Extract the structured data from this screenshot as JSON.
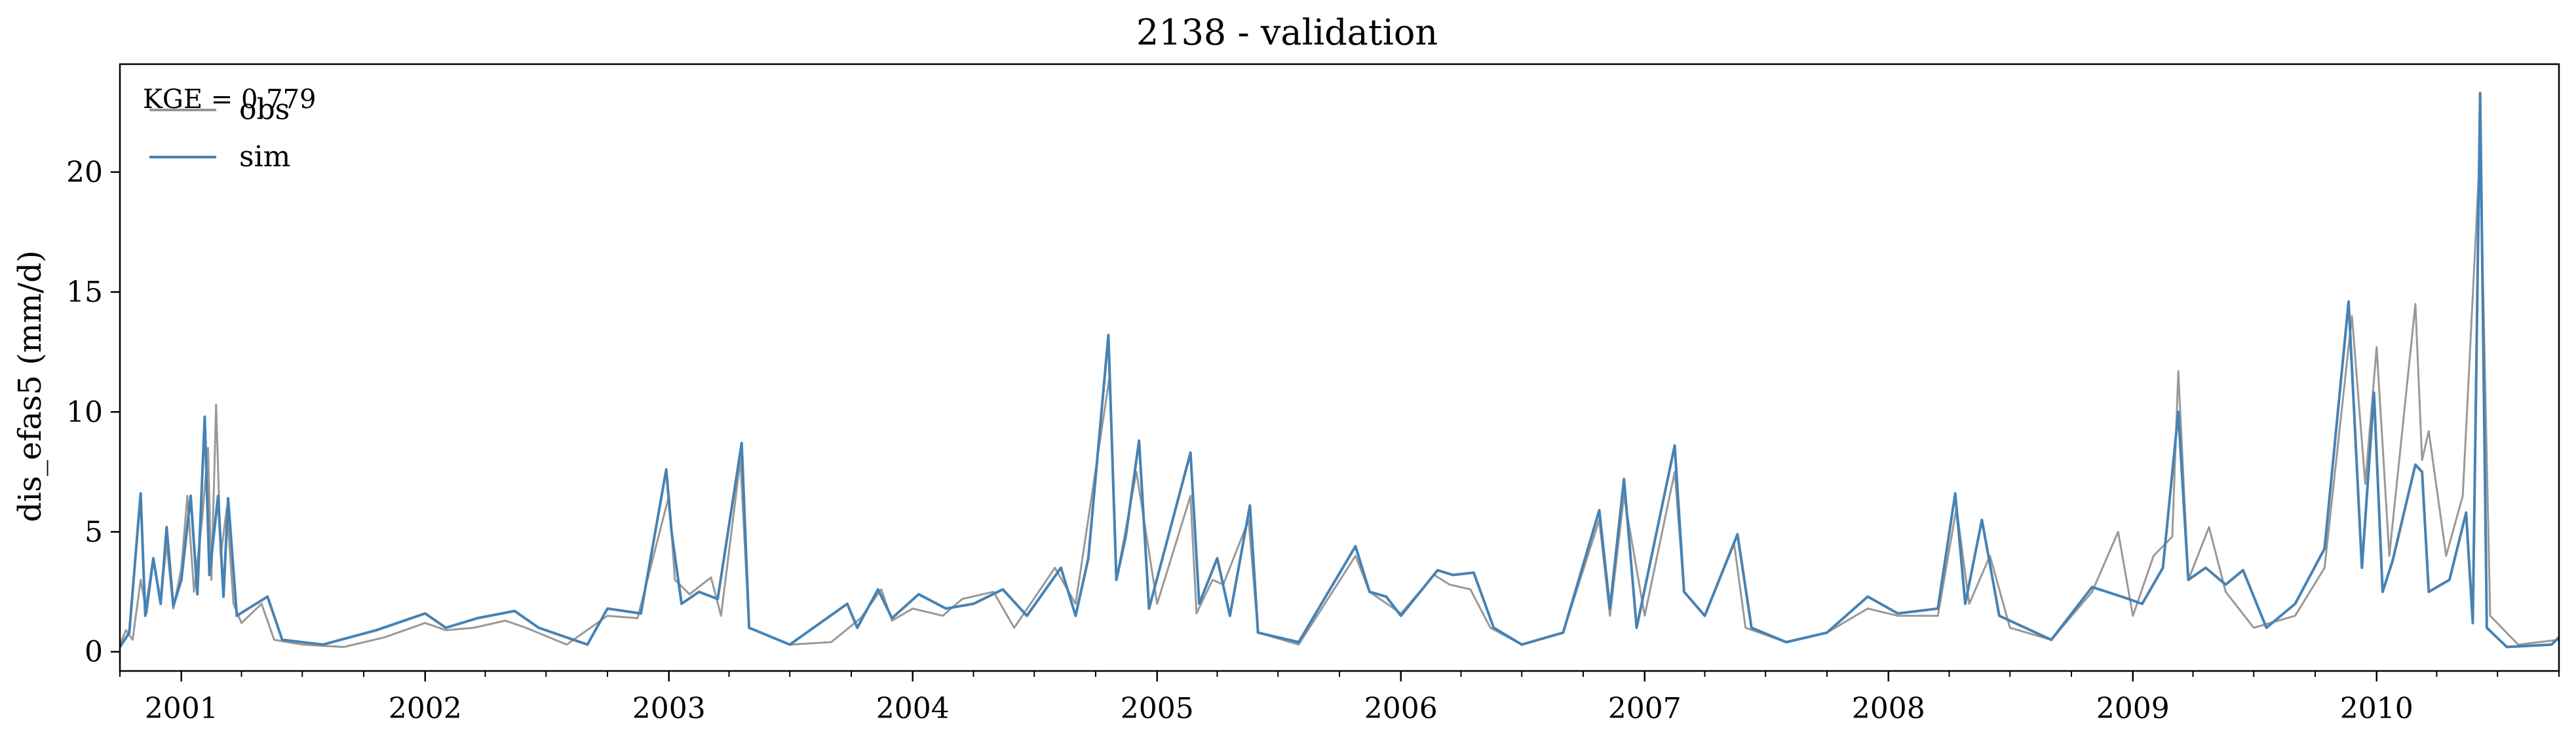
{
  "chart_data": {
    "type": "line",
    "title": "2138 - validation",
    "xlabel": "",
    "ylabel": "dis_efas5 (mm/d)",
    "xlim": [
      "2000-10-01",
      "2010-10-01"
    ],
    "ylim": [
      -0.8,
      24.5
    ],
    "y_ticks": [
      0,
      5,
      10,
      15,
      20
    ],
    "x_ticks": [
      "2001",
      "2002",
      "2003",
      "2004",
      "2005",
      "2006",
      "2007",
      "2008",
      "2009",
      "2010"
    ],
    "annotation": "KGE = 0.779",
    "legend": {
      "placement": "top-left"
    },
    "grid": false,
    "series": [
      {
        "name": "obs",
        "color": "#999999",
        "points": [
          [
            "2000-10-01",
            0.3
          ],
          [
            "2000-10-10",
            0.9
          ],
          [
            "2000-10-20",
            0.5
          ],
          [
            "2000-11-01",
            3.0
          ],
          [
            "2000-11-10",
            1.6
          ],
          [
            "2000-11-20",
            3.8
          ],
          [
            "2000-12-01",
            2.2
          ],
          [
            "2000-12-10",
            4.5
          ],
          [
            "2000-12-20",
            1.8
          ],
          [
            "2001-01-01",
            3.5
          ],
          [
            "2001-01-10",
            6.5
          ],
          [
            "2001-01-20",
            2.5
          ],
          [
            "2001-02-01",
            5.5
          ],
          [
            "2001-02-10",
            8.5
          ],
          [
            "2001-02-15",
            3.0
          ],
          [
            "2001-02-22",
            10.3
          ],
          [
            "2001-03-01",
            4.0
          ],
          [
            "2001-03-10",
            6.0
          ],
          [
            "2001-03-20",
            2.0
          ],
          [
            "2001-04-01",
            1.2
          ],
          [
            "2001-05-01",
            2.0
          ],
          [
            "2001-05-20",
            0.5
          ],
          [
            "2001-07-01",
            0.3
          ],
          [
            "2001-09-01",
            0.2
          ],
          [
            "2001-11-01",
            0.6
          ],
          [
            "2002-01-01",
            1.2
          ],
          [
            "2002-02-01",
            0.9
          ],
          [
            "2002-03-15",
            1.0
          ],
          [
            "2002-05-01",
            1.3
          ],
          [
            "2002-06-01",
            1.0
          ],
          [
            "2002-08-01",
            0.3
          ],
          [
            "2002-10-01",
            1.5
          ],
          [
            "2002-11-15",
            1.4
          ],
          [
            "2003-01-01",
            6.5
          ],
          [
            "2003-01-10",
            3.0
          ],
          [
            "2003-02-01",
            2.4
          ],
          [
            "2003-03-05",
            3.1
          ],
          [
            "2003-03-20",
            1.5
          ],
          [
            "2003-04-18",
            8.0
          ],
          [
            "2003-05-01",
            1.0
          ],
          [
            "2003-07-01",
            0.3
          ],
          [
            "2003-09-01",
            0.4
          ],
          [
            "2003-10-15",
            1.4
          ],
          [
            "2003-11-15",
            2.6
          ],
          [
            "2003-12-01",
            1.3
          ],
          [
            "2004-01-01",
            1.8
          ],
          [
            "2004-02-15",
            1.5
          ],
          [
            "2004-03-15",
            2.2
          ],
          [
            "2004-05-01",
            2.5
          ],
          [
            "2004-06-01",
            1.0
          ],
          [
            "2004-08-01",
            3.5
          ],
          [
            "2004-09-01",
            2.0
          ],
          [
            "2004-10-22",
            11.5
          ],
          [
            "2004-11-01",
            3.0
          ],
          [
            "2004-12-01",
            7.5
          ],
          [
            "2005-01-01",
            2.0
          ],
          [
            "2005-02-20",
            6.5
          ],
          [
            "2005-03-01",
            1.6
          ],
          [
            "2005-03-25",
            3.0
          ],
          [
            "2005-04-10",
            2.8
          ],
          [
            "2005-05-18",
            5.5
          ],
          [
            "2005-06-01",
            0.8
          ],
          [
            "2005-08-01",
            0.3
          ],
          [
            "2005-10-25",
            4.0
          ],
          [
            "2005-11-15",
            2.5
          ],
          [
            "2006-01-01",
            1.6
          ],
          [
            "2006-02-20",
            3.2
          ],
          [
            "2006-03-15",
            2.8
          ],
          [
            "2006-04-15",
            2.6
          ],
          [
            "2006-05-15",
            1.0
          ],
          [
            "2006-07-01",
            0.3
          ],
          [
            "2006-09-01",
            0.8
          ],
          [
            "2006-10-25",
            5.5
          ],
          [
            "2006-11-10",
            1.5
          ],
          [
            "2006-12-01",
            6.5
          ],
          [
            "2007-01-01",
            1.5
          ],
          [
            "2007-02-15",
            7.5
          ],
          [
            "2007-03-01",
            2.5
          ],
          [
            "2007-04-01",
            1.5
          ],
          [
            "2007-05-15",
            4.5
          ],
          [
            "2007-06-01",
            1.0
          ],
          [
            "2007-08-01",
            0.4
          ],
          [
            "2007-10-01",
            0.8
          ],
          [
            "2007-12-01",
            1.8
          ],
          [
            "2008-01-15",
            1.5
          ],
          [
            "2008-03-15",
            1.5
          ],
          [
            "2008-04-12",
            6.0
          ],
          [
            "2008-05-01",
            2.0
          ],
          [
            "2008-06-01",
            4.0
          ],
          [
            "2008-07-01",
            1.0
          ],
          [
            "2008-09-01",
            0.5
          ],
          [
            "2008-11-01",
            2.5
          ],
          [
            "2008-12-10",
            5.0
          ],
          [
            "2009-01-01",
            1.5
          ],
          [
            "2009-02-01",
            4.0
          ],
          [
            "2009-03-01",
            4.8
          ],
          [
            "2009-03-10",
            11.7
          ],
          [
            "2009-03-25",
            3.0
          ],
          [
            "2009-04-25",
            5.2
          ],
          [
            "2009-05-20",
            2.5
          ],
          [
            "2009-07-01",
            1.0
          ],
          [
            "2009-09-01",
            1.5
          ],
          [
            "2009-10-15",
            3.5
          ],
          [
            "2009-11-25",
            14.0
          ],
          [
            "2009-12-15",
            7.0
          ],
          [
            "2010-01-01",
            12.7
          ],
          [
            "2010-01-20",
            4.0
          ],
          [
            "2010-02-28",
            14.5
          ],
          [
            "2010-03-10",
            8.0
          ],
          [
            "2010-03-20",
            9.2
          ],
          [
            "2010-04-15",
            4.0
          ],
          [
            "2010-05-10",
            6.5
          ],
          [
            "2010-06-05",
            21.0
          ],
          [
            "2010-06-20",
            1.5
          ],
          [
            "2010-08-01",
            0.3
          ],
          [
            "2010-10-01",
            0.5
          ]
        ]
      },
      {
        "name": "sim",
        "color": "#4682b4",
        "points": [
          [
            "2000-10-01",
            0.2
          ],
          [
            "2000-10-15",
            0.8
          ],
          [
            "2000-11-01",
            6.6
          ],
          [
            "2000-11-08",
            1.5
          ],
          [
            "2000-11-20",
            3.9
          ],
          [
            "2000-12-01",
            2.0
          ],
          [
            "2000-12-10",
            5.2
          ],
          [
            "2000-12-20",
            1.9
          ],
          [
            "2001-01-01",
            3.0
          ],
          [
            "2001-01-15",
            6.5
          ],
          [
            "2001-01-25",
            2.4
          ],
          [
            "2001-02-05",
            9.8
          ],
          [
            "2001-02-12",
            3.2
          ],
          [
            "2001-02-25",
            6.5
          ],
          [
            "2001-03-05",
            2.3
          ],
          [
            "2001-03-12",
            6.4
          ],
          [
            "2001-03-25",
            1.5
          ],
          [
            "2001-05-10",
            2.3
          ],
          [
            "2001-06-01",
            0.5
          ],
          [
            "2001-08-01",
            0.3
          ],
          [
            "2001-10-20",
            0.9
          ],
          [
            "2002-01-01",
            1.6
          ],
          [
            "2002-02-01",
            1.0
          ],
          [
            "2002-03-20",
            1.4
          ],
          [
            "2002-05-15",
            1.7
          ],
          [
            "2002-06-20",
            1.0
          ],
          [
            "2002-09-01",
            0.3
          ],
          [
            "2002-10-01",
            1.8
          ],
          [
            "2002-11-20",
            1.6
          ],
          [
            "2002-12-28",
            7.6
          ],
          [
            "2003-01-05",
            5.0
          ],
          [
            "2003-01-20",
            2.0
          ],
          [
            "2003-02-15",
            2.5
          ],
          [
            "2003-03-15",
            2.2
          ],
          [
            "2003-04-20",
            8.7
          ],
          [
            "2003-05-01",
            1.0
          ],
          [
            "2003-07-01",
            0.3
          ],
          [
            "2003-09-25",
            2.0
          ],
          [
            "2003-10-10",
            1.0
          ],
          [
            "2003-11-10",
            2.6
          ],
          [
            "2003-12-01",
            1.4
          ],
          [
            "2004-01-10",
            2.4
          ],
          [
            "2004-02-20",
            1.8
          ],
          [
            "2004-04-01",
            2.0
          ],
          [
            "2004-05-15",
            2.6
          ],
          [
            "2004-06-20",
            1.5
          ],
          [
            "2004-08-10",
            3.5
          ],
          [
            "2004-09-01",
            1.5
          ],
          [
            "2004-09-20",
            3.9
          ],
          [
            "2004-10-20",
            13.2
          ],
          [
            "2004-11-01",
            3.0
          ],
          [
            "2004-11-15",
            4.8
          ],
          [
            "2004-12-05",
            8.8
          ],
          [
            "2004-12-20",
            1.8
          ],
          [
            "2005-02-20",
            8.3
          ],
          [
            "2005-03-05",
            2.0
          ],
          [
            "2005-04-01",
            3.9
          ],
          [
            "2005-04-20",
            1.5
          ],
          [
            "2005-05-20",
            6.1
          ],
          [
            "2005-06-01",
            0.8
          ],
          [
            "2005-08-01",
            0.4
          ],
          [
            "2005-10-25",
            4.4
          ],
          [
            "2005-11-15",
            2.5
          ],
          [
            "2005-12-10",
            2.3
          ],
          [
            "2006-01-01",
            1.5
          ],
          [
            "2006-02-25",
            3.4
          ],
          [
            "2006-03-20",
            3.2
          ],
          [
            "2006-04-20",
            3.3
          ],
          [
            "2006-05-20",
            1.0
          ],
          [
            "2006-07-01",
            0.3
          ],
          [
            "2006-09-01",
            0.8
          ],
          [
            "2006-10-25",
            5.9
          ],
          [
            "2006-11-10",
            1.8
          ],
          [
            "2006-12-01",
            7.2
          ],
          [
            "2006-12-20",
            1.0
          ],
          [
            "2007-02-15",
            8.6
          ],
          [
            "2007-03-01",
            2.5
          ],
          [
            "2007-04-01",
            1.5
          ],
          [
            "2007-05-20",
            4.9
          ],
          [
            "2007-06-10",
            1.0
          ],
          [
            "2007-08-01",
            0.4
          ],
          [
            "2007-10-01",
            0.8
          ],
          [
            "2007-12-01",
            2.3
          ],
          [
            "2008-01-15",
            1.6
          ],
          [
            "2008-03-15",
            1.8
          ],
          [
            "2008-04-10",
            6.6
          ],
          [
            "2008-04-25",
            2.0
          ],
          [
            "2008-05-20",
            5.5
          ],
          [
            "2008-06-15",
            1.5
          ],
          [
            "2008-09-01",
            0.5
          ],
          [
            "2008-11-01",
            2.7
          ],
          [
            "2008-12-15",
            2.3
          ],
          [
            "2009-01-15",
            2.0
          ],
          [
            "2009-02-15",
            3.5
          ],
          [
            "2009-03-10",
            10.0
          ],
          [
            "2009-03-25",
            3.0
          ],
          [
            "2009-04-20",
            3.5
          ],
          [
            "2009-05-20",
            2.8
          ],
          [
            "2009-06-15",
            3.4
          ],
          [
            "2009-07-20",
            1.0
          ],
          [
            "2009-09-01",
            2.0
          ],
          [
            "2009-10-15",
            4.3
          ],
          [
            "2009-11-20",
            14.6
          ],
          [
            "2009-12-10",
            3.5
          ],
          [
            "2009-12-28",
            10.8
          ],
          [
            "2010-01-10",
            2.5
          ],
          [
            "2010-01-25",
            3.8
          ],
          [
            "2010-02-28",
            7.8
          ],
          [
            "2010-03-10",
            7.5
          ],
          [
            "2010-03-20",
            2.5
          ],
          [
            "2010-04-20",
            3.0
          ],
          [
            "2010-05-15",
            5.8
          ],
          [
            "2010-05-25",
            1.2
          ],
          [
            "2010-06-05",
            23.3
          ],
          [
            "2010-06-15",
            1.0
          ],
          [
            "2010-07-15",
            0.2
          ],
          [
            "2010-09-20",
            0.3
          ],
          [
            "2010-10-01",
            0.6
          ]
        ]
      }
    ]
  }
}
